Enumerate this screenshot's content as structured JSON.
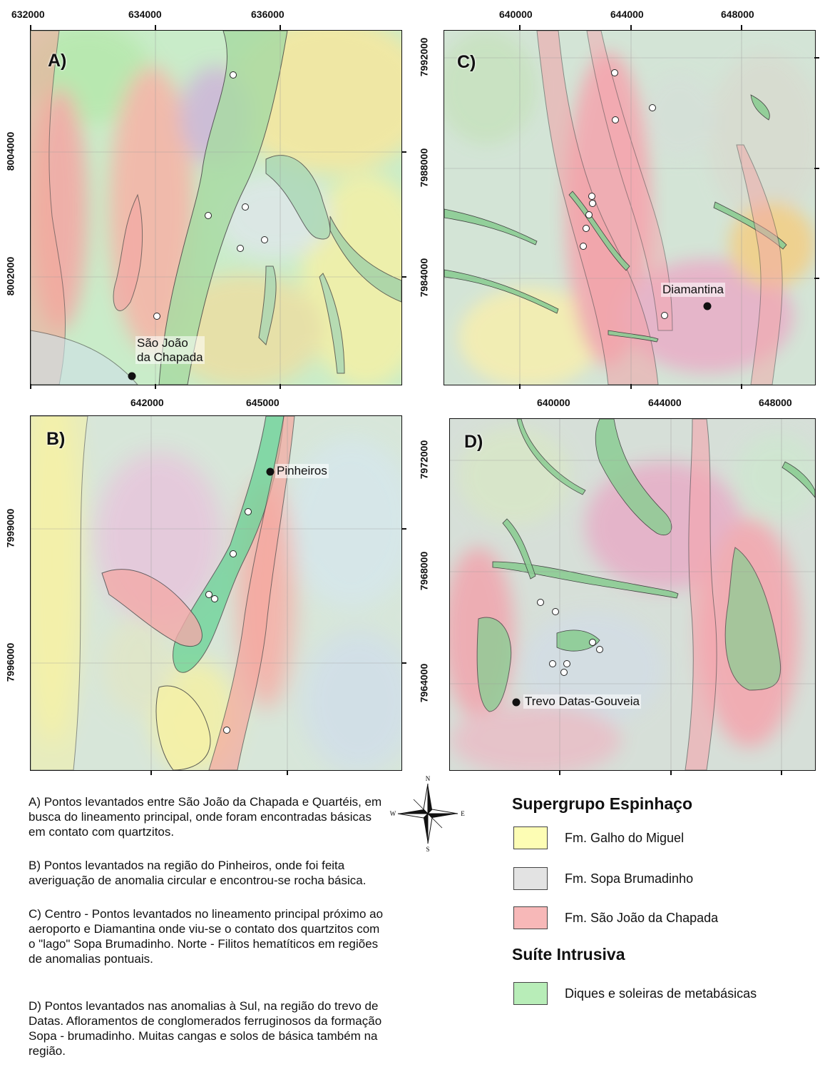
{
  "maps": [
    {
      "id": "A",
      "panel_label": "A)",
      "x_ticks": [
        "632000",
        "634000",
        "636000"
      ],
      "x_ticks_bottom": [
        "642000",
        "645000"
      ],
      "y_ticks": [
        "8004000",
        "8002000"
      ],
      "places": [
        {
          "name": "São João\nda Chapada"
        }
      ]
    },
    {
      "id": "B",
      "panel_label": "B)",
      "y_ticks": [
        "7999000",
        "7996000"
      ],
      "places": [
        {
          "name": "Pinheiros"
        }
      ]
    },
    {
      "id": "C",
      "panel_label": "C)",
      "x_ticks": [
        "640000",
        "644000",
        "648000"
      ],
      "x_ticks_bottom": [
        "640000",
        "644000",
        "648000"
      ],
      "y_ticks": [
        "7992000",
        "7988000",
        "7984000"
      ],
      "places": [
        {
          "name": "Diamantina"
        }
      ]
    },
    {
      "id": "D",
      "panel_label": "D)",
      "y_ticks": [
        "7972000",
        "7968000",
        "7964000"
      ],
      "places": [
        {
          "name": "Trevo Datas-Gouveia"
        }
      ]
    }
  ],
  "descriptions": [
    "A) Pontos levantados entre São João da Chapada e Quartéis, em busca do lineamento principal, onde foram encontradas básicas em contato com quartzitos.",
    "B) Pontos levantados na região do Pinheiros, onde foi feita averiguação de anomalia circular e encontrou-se rocha básica.",
    "C) Centro -  Pontos levantados no lineamento principal próximo ao aeroporto e Diamantina onde viu-se o contato dos quartzitos com o \"lago\" Sopa Brumadinho. Norte - Filitos hematíticos em regiões de anomalias pontuais.",
    "D) Pontos levantados nas anomalias à Sul, na região do trevo de Datas. Afloramentos de conglomerados ferruginosos da formação Sopa - brumadinho. Muitas cangas e solos de básica também na região."
  ],
  "compass": {
    "n": "N",
    "s": "S",
    "e": "E",
    "w": "W"
  },
  "legend": {
    "group1_title": "Supergrupo Espinhaço",
    "group1_items": [
      {
        "label": "Fm. Galho do Miguel",
        "color": "#fdfdb4"
      },
      {
        "label": "Fm. Sopa Brumadinho",
        "color": "#e3e3e3"
      },
      {
        "label": "Fm. São João da Chapada",
        "color": "#f7b8b8"
      }
    ],
    "group2_title": "Suíte Intrusiva",
    "group2_items": [
      {
        "label": "Diques e soleiras de metabásicas",
        "color": "#b8edb8"
      }
    ]
  }
}
